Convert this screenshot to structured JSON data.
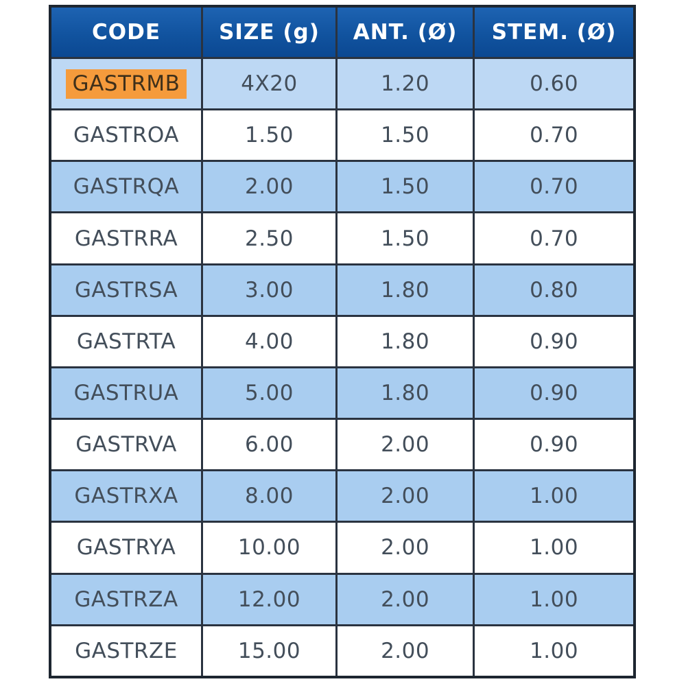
{
  "page": {
    "background_color": "#ffffff"
  },
  "colors": {
    "header_bg_top": "#1e63b2",
    "header_bg_bottom": "#0b4892",
    "header_text": "#ffffff",
    "row_blue_first": "#bdd8f4",
    "row_blue": "#a9cdf0",
    "row_white": "#ffffff",
    "body_text": "#434e5a",
    "grid_border": "#2a3340",
    "outer_border": "#1d2630",
    "highlight_bg": "#f59b3c",
    "highlight_text": "#3f301a"
  },
  "chart_data": {
    "type": "table",
    "title": "",
    "columns": [
      "CODE",
      "SIZE (g)",
      "ANT. (Ø)",
      "STEM. (Ø)"
    ],
    "rows": [
      {
        "code": "GASTRMB",
        "size": "4X20",
        "ant": "1.20",
        "stem": "0.60",
        "code_highlighted": true
      },
      {
        "code": "GASTROA",
        "size": "1.50",
        "ant": "1.50",
        "stem": "0.70",
        "code_highlighted": false
      },
      {
        "code": "GASTRQA",
        "size": "2.00",
        "ant": "1.50",
        "stem": "0.70",
        "code_highlighted": false
      },
      {
        "code": "GASTRRA",
        "size": "2.50",
        "ant": "1.50",
        "stem": "0.70",
        "code_highlighted": false
      },
      {
        "code": "GASTRSA",
        "size": "3.00",
        "ant": "1.80",
        "stem": "0.80",
        "code_highlighted": false
      },
      {
        "code": "GASTRTA",
        "size": "4.00",
        "ant": "1.80",
        "stem": "0.90",
        "code_highlighted": false
      },
      {
        "code": "GASTRUA",
        "size": "5.00",
        "ant": "1.80",
        "stem": "0.90",
        "code_highlighted": false
      },
      {
        "code": "GASTRVA",
        "size": "6.00",
        "ant": "2.00",
        "stem": "0.90",
        "code_highlighted": false
      },
      {
        "code": "GASTRXA",
        "size": "8.00",
        "ant": "2.00",
        "stem": "1.00",
        "code_highlighted": false
      },
      {
        "code": "GASTRYA",
        "size": "10.00",
        "ant": "2.00",
        "stem": "1.00",
        "code_highlighted": false
      },
      {
        "code": "GASTRZA",
        "size": "12.00",
        "ant": "2.00",
        "stem": "1.00",
        "code_highlighted": false
      },
      {
        "code": "GASTRZE",
        "size": "15.00",
        "ant": "2.00",
        "stem": "1.00",
        "code_highlighted": false
      }
    ],
    "layout": {
      "striping": "rows 1,3,5,7,9,11 blue (row 1 slightly lighter), rows 2,4,6,8,10,12 white",
      "grid": true,
      "highlighted_cell": {
        "row_index": 0,
        "column": "CODE",
        "highlight_color": "#f59b3c"
      }
    }
  }
}
